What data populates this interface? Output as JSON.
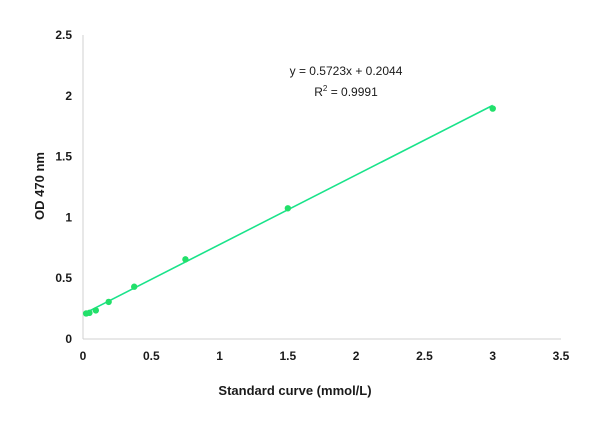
{
  "chart_data": {
    "type": "scatter",
    "xlabel": "Standard curve (mmol/L)",
    "ylabel": "OD 470 nm",
    "xlim": [
      0,
      3.5
    ],
    "ylim": [
      0,
      2.5
    ],
    "x_ticks": [
      "0",
      "0.5",
      "1",
      "1.5",
      "2",
      "2.5",
      "3",
      "3.5"
    ],
    "y_ticks": [
      "0",
      "0.5",
      "1",
      "1.5",
      "2",
      "2.5"
    ],
    "grid": false,
    "series": [
      {
        "x": [
          0.023,
          0.047,
          0.094,
          0.188,
          0.375,
          0.75,
          1.5,
          3.0
        ],
        "y": [
          0.21,
          0.215,
          0.235,
          0.305,
          0.43,
          0.655,
          1.075,
          1.895
        ],
        "color": "#22e06a"
      }
    ],
    "trendline": {
      "type": "linear",
      "slope": 0.5723,
      "intercept": 0.2044,
      "color": "#19e38a",
      "equation_label": "y = 0.5723x + 0.2044",
      "r2_prefix": "R",
      "r2_exponent": "2",
      "r2_value": " = 0.9991"
    }
  }
}
